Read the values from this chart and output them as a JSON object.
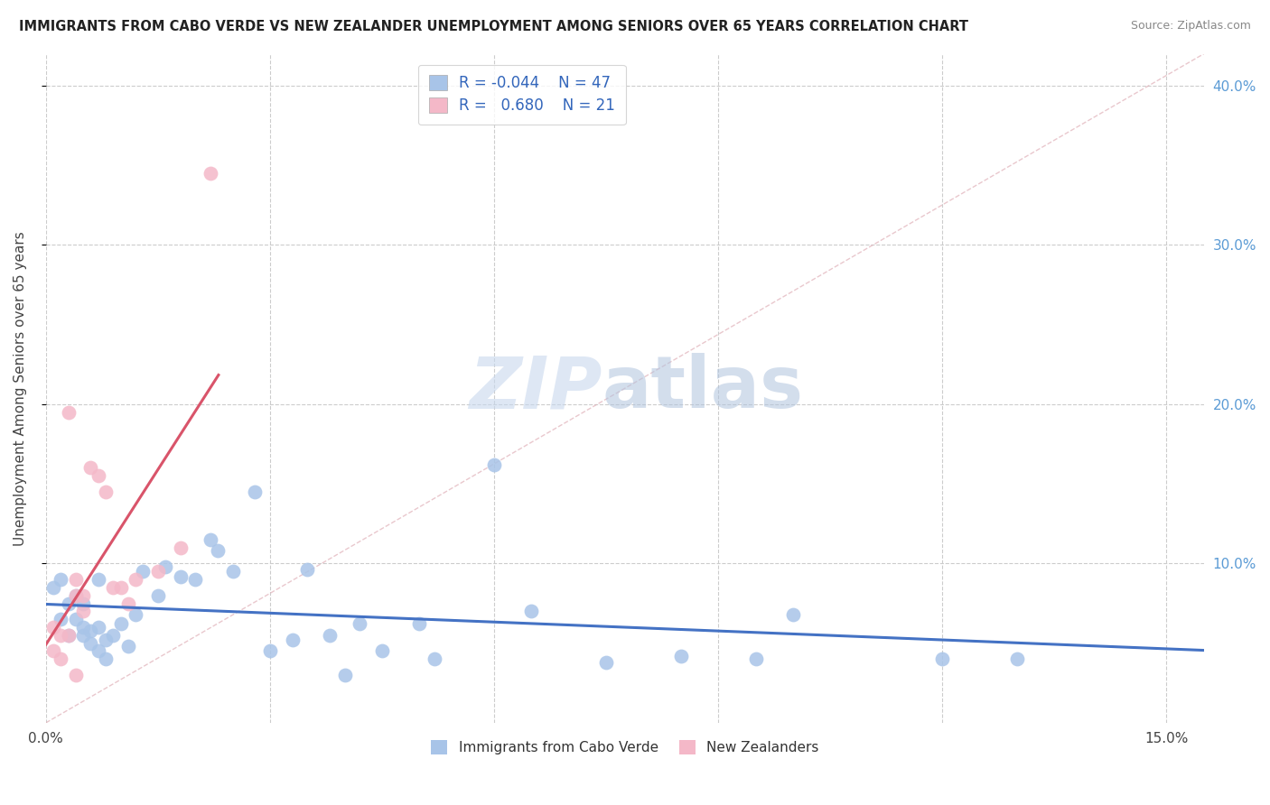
{
  "title": "IMMIGRANTS FROM CABO VERDE VS NEW ZEALANDER UNEMPLOYMENT AMONG SENIORS OVER 65 YEARS CORRELATION CHART",
  "source": "Source: ZipAtlas.com",
  "ylabel": "Unemployment Among Seniors over 65 years",
  "ylim": [
    0,
    0.42
  ],
  "xlim": [
    0,
    0.155
  ],
  "yticks_right": [
    0.1,
    0.2,
    0.3,
    0.4
  ],
  "ytick_right_labels": [
    "10.0%",
    "20.0%",
    "30.0%",
    "40.0%"
  ],
  "xtick_positions": [
    0.0,
    0.03,
    0.06,
    0.09,
    0.12,
    0.15
  ],
  "xtick_labels": [
    "0.0%",
    "",
    "",
    "",
    "",
    "15.0%"
  ],
  "legend_r1": "R = -0.044",
  "legend_n1": "N = 47",
  "legend_r2": "R =  0.680",
  "legend_n2": "N = 21",
  "blue_dot_color": "#a8c4e8",
  "pink_dot_color": "#f4b8c8",
  "blue_line_color": "#4472c4",
  "pink_line_color": "#d9546a",
  "cabo_verde_x": [
    0.001,
    0.002,
    0.002,
    0.003,
    0.003,
    0.004,
    0.004,
    0.005,
    0.005,
    0.005,
    0.006,
    0.006,
    0.007,
    0.007,
    0.007,
    0.008,
    0.008,
    0.009,
    0.01,
    0.011,
    0.012,
    0.013,
    0.015,
    0.016,
    0.018,
    0.02,
    0.022,
    0.023,
    0.025,
    0.028,
    0.03,
    0.033,
    0.035,
    0.038,
    0.04,
    0.042,
    0.045,
    0.05,
    0.052,
    0.06,
    0.065,
    0.075,
    0.085,
    0.095,
    0.1,
    0.12,
    0.13
  ],
  "cabo_verde_y": [
    0.085,
    0.09,
    0.065,
    0.075,
    0.055,
    0.08,
    0.065,
    0.075,
    0.06,
    0.055,
    0.058,
    0.05,
    0.09,
    0.06,
    0.045,
    0.052,
    0.04,
    0.055,
    0.062,
    0.048,
    0.068,
    0.095,
    0.08,
    0.098,
    0.092,
    0.09,
    0.115,
    0.108,
    0.095,
    0.145,
    0.045,
    0.052,
    0.096,
    0.055,
    0.03,
    0.062,
    0.045,
    0.062,
    0.04,
    0.162,
    0.07,
    0.038,
    0.042,
    0.04,
    0.068,
    0.04,
    0.04
  ],
  "new_zealand_x": [
    0.001,
    0.001,
    0.002,
    0.002,
    0.003,
    0.003,
    0.004,
    0.004,
    0.004,
    0.005,
    0.005,
    0.006,
    0.007,
    0.008,
    0.009,
    0.01,
    0.011,
    0.012,
    0.015,
    0.018,
    0.022
  ],
  "new_zealand_y": [
    0.06,
    0.045,
    0.055,
    0.04,
    0.055,
    0.195,
    0.03,
    0.09,
    0.08,
    0.07,
    0.08,
    0.16,
    0.155,
    0.145,
    0.085,
    0.085,
    0.075,
    0.09,
    0.095,
    0.11,
    0.345
  ]
}
